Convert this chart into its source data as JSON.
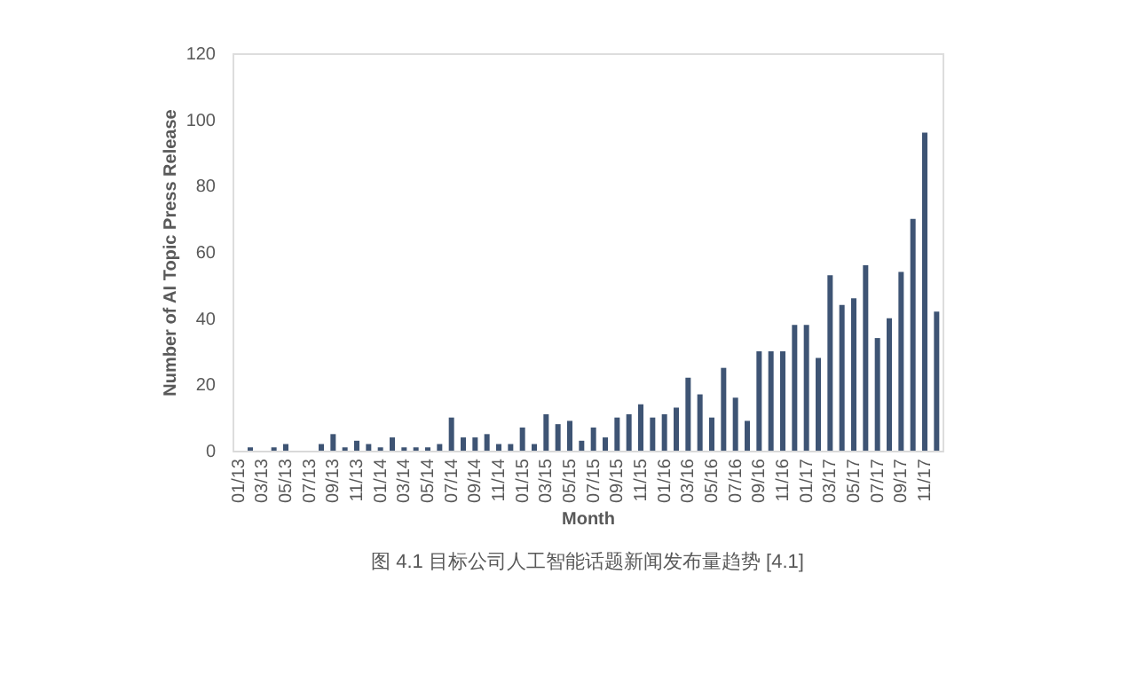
{
  "chart_data": {
    "type": "bar",
    "title": "图 4.1 目标公司人工智能话题新闻发布量趋势 [4.1]",
    "xlabel": "Month",
    "ylabel": "Number of AI Topic Press Release",
    "categories": [
      "01/13",
      null,
      "03/13",
      null,
      "05/13",
      null,
      "07/13",
      null,
      "09/13",
      null,
      "11/13",
      null,
      "01/14",
      null,
      "03/14",
      null,
      "05/14",
      null,
      "07/14",
      null,
      "09/14",
      null,
      "11/14",
      null,
      "01/15",
      null,
      "03/15",
      null,
      "05/15",
      null,
      "07/15",
      null,
      "09/15",
      null,
      "11/15",
      null,
      "01/16",
      null,
      "03/16",
      null,
      "05/16",
      null,
      "07/16",
      null,
      "09/16",
      null,
      "11/16",
      null,
      "01/17",
      null,
      "03/17",
      null,
      "05/17",
      null,
      "07/17",
      null,
      "09/17",
      null,
      "11/17",
      null
    ],
    "values": [
      0,
      1,
      0,
      1,
      2,
      0,
      0,
      2,
      5,
      1,
      3,
      2,
      1,
      4,
      1,
      1,
      1,
      2,
      10,
      4,
      4,
      5,
      2,
      2,
      7,
      2,
      11,
      8,
      9,
      3,
      7,
      4,
      10,
      11,
      14,
      10,
      11,
      13,
      22,
      17,
      10,
      25,
      16,
      9,
      30,
      30,
      30,
      38,
      38,
      28,
      53,
      44,
      46,
      56,
      34,
      40,
      54,
      70,
      96,
      42
    ],
    "color": "#3e5474",
    "ylim": [
      0,
      120
    ],
    "yticks": [
      0,
      20,
      40,
      60,
      80,
      100,
      120
    ],
    "grid": false
  }
}
